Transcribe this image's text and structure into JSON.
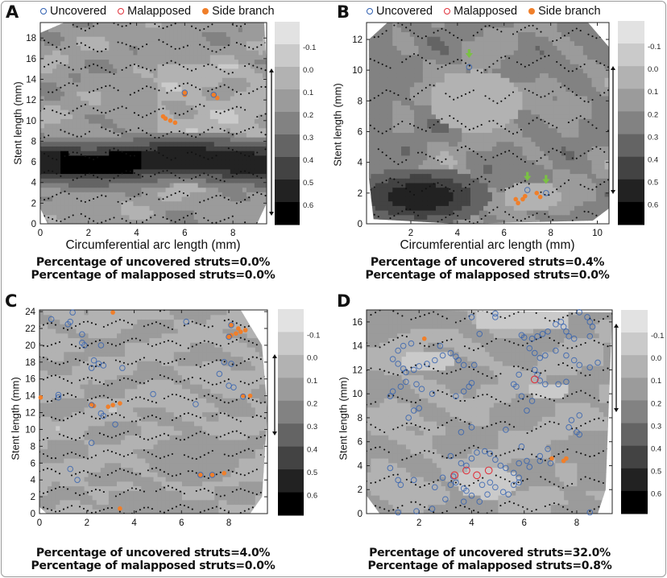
{
  "legend": {
    "uncovered": "Uncovered",
    "malapposed": "Malapposed",
    "side_branch": "Side branch"
  },
  "colors": {
    "uncovered": "#2f5fb0",
    "malapposed": "#e0303a",
    "side_branch": "#f07f2a",
    "arrow": "#7ac143",
    "strut": "#111111"
  },
  "axis_labels": {
    "x": "Circumferential arc length (mm)",
    "y": "Stent length (mm)"
  },
  "chart_data": [
    {
      "panel": "A",
      "type": "heatmap",
      "xlabel": "Circumferential arc length (mm)",
      "ylabel": "Stent length (mm)",
      "xlim": [
        0,
        9.4
      ],
      "ylim": [
        0,
        19.5
      ],
      "xticks": [
        "0",
        "2",
        "4",
        "6",
        "8"
      ],
      "yticks": [
        "0",
        "2",
        "4",
        "6",
        "8",
        "10",
        "12",
        "14",
        "16",
        "18"
      ],
      "colorbar_labels": [
        "-0.1",
        "0.0",
        "0.1",
        "0.2",
        "0.3",
        "0.4",
        "0.5",
        "0.6"
      ],
      "uncovered": [
        [
          6.0,
          12.7
        ],
        [
          7.2,
          12.5
        ]
      ],
      "malapposed": [],
      "side_branch": [
        [
          6.0,
          12.7
        ],
        [
          6.0,
          12.5
        ],
        [
          7.2,
          12.5
        ],
        [
          7.35,
          12.2
        ],
        [
          5.1,
          10.4
        ],
        [
          5.2,
          10.2
        ],
        [
          5.4,
          10.0
        ],
        [
          5.6,
          9.8
        ]
      ],
      "green_arrows": [],
      "percent_uncovered": "Percentage of uncovered struts=0.0%",
      "percent_malapposed": "Percentage of malapposed struts=0.0%"
    },
    {
      "panel": "B",
      "type": "heatmap",
      "xlabel": "Circumferential arc length (mm)",
      "ylabel": "Stent length (mm)",
      "xlim": [
        0.1,
        10.5
      ],
      "ylim": [
        0,
        13.1
      ],
      "xticks": [
        "2",
        "4",
        "6",
        "8",
        "10"
      ],
      "yticks": [
        "0",
        "2",
        "4",
        "6",
        "8",
        "10",
        "12"
      ],
      "colorbar_labels": [
        "-0.1",
        "0.0",
        "0.1",
        "0.2",
        "0.3",
        "0.4",
        "0.5",
        "0.6"
      ],
      "uncovered": [
        [
          4.5,
          10.2
        ],
        [
          7.0,
          2.2
        ],
        [
          7.8,
          2.0
        ]
      ],
      "malapposed": [],
      "side_branch": [
        [
          6.5,
          1.6
        ],
        [
          6.6,
          1.35
        ],
        [
          6.8,
          1.6
        ],
        [
          6.9,
          1.8
        ],
        [
          7.4,
          2.0
        ],
        [
          7.55,
          1.75
        ]
      ],
      "green_arrows": [
        [
          4.5,
          10.9
        ],
        [
          7.0,
          2.9
        ],
        [
          7.8,
          2.7
        ]
      ],
      "percent_uncovered": "Percentage of uncovered struts=0.4%",
      "percent_malapposed": "Percentage of malapposed struts=0.0%"
    },
    {
      "panel": "C",
      "type": "heatmap",
      "ylabel": "Stent length (mm)",
      "xlim": [
        0,
        9.63
      ],
      "ylim": [
        0,
        24.2
      ],
      "xticks": [
        "0",
        "2",
        "4",
        "6",
        "8"
      ],
      "yticks": [
        "0",
        "2",
        "4",
        "6",
        "8",
        "10",
        "12",
        "14",
        "16",
        "18",
        "20",
        "22",
        "24"
      ],
      "colorbar_labels": [
        "-0.1",
        "0.0",
        "0.1",
        "0.2",
        "0.3",
        "0.4",
        "0.5",
        "0.6"
      ],
      "uncovered": [
        [
          0.5,
          23.1
        ],
        [
          1.2,
          22.5
        ],
        [
          1.3,
          22.8
        ],
        [
          1.4,
          23.9
        ],
        [
          1.8,
          21.3
        ],
        [
          1.8,
          20.3
        ],
        [
          1.9,
          20.0
        ],
        [
          2.6,
          20.0
        ],
        [
          2.3,
          18.2
        ],
        [
          2.2,
          17.3
        ],
        [
          2.5,
          17.8
        ],
        [
          2.7,
          17.6
        ],
        [
          3.5,
          17.3
        ],
        [
          0.8,
          13.8
        ],
        [
          0.8,
          14.1
        ],
        [
          2.6,
          11.9
        ],
        [
          2.7,
          11.6
        ],
        [
          3.2,
          10.6
        ],
        [
          2.2,
          8.4
        ],
        [
          1.3,
          5.3
        ],
        [
          1.6,
          4.0
        ],
        [
          4.8,
          14.2
        ],
        [
          6.6,
          13.0
        ],
        [
          6.2,
          22.8
        ],
        [
          7.6,
          16.6
        ],
        [
          7.8,
          18.0
        ],
        [
          8.1,
          17.8
        ],
        [
          8.0,
          15.2
        ],
        [
          8.2,
          15.0
        ],
        [
          8.6,
          13.9
        ],
        [
          2.2,
          12.9
        ],
        [
          6.8,
          4.6
        ],
        [
          7.3,
          4.6
        ],
        [
          8.1,
          22.4
        ],
        [
          8.0,
          21.0
        ]
      ],
      "malapposed": [],
      "side_branch": [
        [
          8.1,
          22.4
        ],
        [
          8.4,
          22.0
        ],
        [
          8.5,
          21.6
        ],
        [
          8.0,
          21.0
        ],
        [
          8.1,
          21.2
        ],
        [
          8.3,
          21.4
        ],
        [
          8.7,
          21.8
        ],
        [
          8.6,
          14.0
        ],
        [
          8.9,
          14.0
        ],
        [
          2.2,
          13.0
        ],
        [
          2.3,
          12.8
        ],
        [
          2.9,
          12.7
        ],
        [
          3.1,
          12.9
        ],
        [
          3.4,
          13.1
        ],
        [
          6.8,
          4.6
        ],
        [
          7.3,
          4.6
        ],
        [
          7.8,
          4.8
        ],
        [
          3.4,
          0.6
        ],
        [
          0.05,
          13.8
        ],
        [
          3.1,
          23.9
        ]
      ],
      "green_arrows": [],
      "percent_uncovered": "Percentage of uncovered struts=4.0%",
      "percent_malapposed": "Percentage of malapposed struts=0.0%"
    },
    {
      "panel": "D",
      "type": "heatmap",
      "ylabel": "Stent length (mm)",
      "xlim": [
        0,
        9.35
      ],
      "ylim": [
        0,
        17.0
      ],
      "xticks": [
        "2",
        "4",
        "6",
        "8"
      ],
      "yticks": [
        "0",
        "2",
        "4",
        "6",
        "8",
        "10",
        "12",
        "14",
        "16"
      ],
      "colorbar_labels": [
        "-0.1",
        "0.0",
        "0.1",
        "0.2",
        "0.3",
        "0.4",
        "0.5",
        "0.6"
      ],
      "uncovered": [
        [
          1.2,
          13.6
        ],
        [
          1.4,
          14.0
        ],
        [
          1.7,
          14.2
        ],
        [
          1.0,
          12.9
        ],
        [
          1.2,
          12.5
        ],
        [
          1.4,
          12.1
        ],
        [
          1.5,
          11.8
        ],
        [
          1.8,
          12.0
        ],
        [
          2.0,
          12.3
        ],
        [
          2.3,
          12.5
        ],
        [
          2.6,
          12.8
        ],
        [
          2.9,
          13.2
        ],
        [
          3.2,
          13.4
        ],
        [
          3.4,
          13.1
        ],
        [
          3.5,
          12.8
        ],
        [
          3.7,
          12.4
        ],
        [
          4.1,
          12.4
        ],
        [
          2.8,
          14.0
        ],
        [
          1.0,
          10.2
        ],
        [
          0.9,
          9.8
        ],
        [
          1.3,
          10.6
        ],
        [
          1.5,
          11.0
        ],
        [
          1.9,
          10.8
        ],
        [
          2.1,
          10.4
        ],
        [
          2.5,
          10.0
        ],
        [
          3.4,
          9.8
        ],
        [
          3.7,
          10.2
        ],
        [
          3.9,
          10.6
        ],
        [
          4.0,
          10.9
        ],
        [
          1.8,
          8.6
        ],
        [
          1.6,
          8.0
        ],
        [
          2.0,
          8.8
        ],
        [
          4.0,
          16.4
        ],
        [
          4.9,
          16.7
        ],
        [
          4.9,
          16.4
        ],
        [
          4.3,
          15.0
        ],
        [
          5.9,
          14.9
        ],
        [
          6.0,
          14.7
        ],
        [
          6.3,
          14.6
        ],
        [
          6.5,
          14.8
        ],
        [
          6.7,
          15.0
        ],
        [
          6.9,
          15.2
        ],
        [
          7.2,
          15.8
        ],
        [
          7.4,
          16.0
        ],
        [
          7.5,
          15.6
        ],
        [
          7.6,
          15.2
        ],
        [
          7.7,
          14.8
        ],
        [
          7.9,
          14.6
        ],
        [
          6.2,
          13.8
        ],
        [
          6.4,
          13.4
        ],
        [
          6.6,
          13.0
        ],
        [
          6.8,
          13.2
        ],
        [
          7.2,
          13.6
        ],
        [
          7.6,
          13.2
        ],
        [
          7.9,
          12.8
        ],
        [
          8.1,
          12.4
        ],
        [
          8.5,
          12.2
        ],
        [
          8.8,
          12.6
        ],
        [
          6.4,
          12.0
        ],
        [
          6.5,
          11.6
        ],
        [
          6.6,
          11.1
        ],
        [
          6.8,
          10.8
        ],
        [
          7.3,
          10.8
        ],
        [
          7.6,
          11.0
        ],
        [
          5.8,
          11.6
        ],
        [
          5.6,
          10.8
        ],
        [
          5.7,
          10.6
        ],
        [
          5.9,
          9.8
        ],
        [
          6.1,
          8.6
        ],
        [
          6.3,
          9.4
        ],
        [
          8.1,
          16.8
        ],
        [
          8.4,
          16.4
        ],
        [
          8.5,
          16.0
        ],
        [
          8.6,
          15.6
        ],
        [
          8.5,
          14.8
        ],
        [
          7.8,
          7.8
        ],
        [
          8.1,
          8.2
        ],
        [
          7.7,
          7.2
        ],
        [
          8.0,
          6.8
        ],
        [
          8.1,
          6.6
        ],
        [
          5.9,
          5.6
        ],
        [
          3.2,
          4.8
        ],
        [
          3.6,
          4.2
        ],
        [
          3.8,
          4.0
        ],
        [
          4.0,
          4.6
        ],
        [
          4.2,
          5.1
        ],
        [
          4.5,
          5.2
        ],
        [
          4.7,
          5.0
        ],
        [
          4.9,
          4.5
        ],
        [
          5.1,
          4.0
        ],
        [
          5.3,
          3.8
        ],
        [
          5.6,
          3.4
        ],
        [
          5.8,
          3.0
        ],
        [
          3.3,
          3.1
        ],
        [
          3.4,
          2.6
        ],
        [
          3.2,
          2.4
        ],
        [
          3.7,
          2.1
        ],
        [
          3.8,
          1.9
        ],
        [
          4.0,
          1.5
        ],
        [
          4.3,
          1.0
        ],
        [
          4.6,
          1.6
        ],
        [
          4.9,
          2.2
        ],
        [
          5.2,
          1.8
        ],
        [
          5.4,
          1.6
        ],
        [
          5.6,
          2.4
        ],
        [
          5.8,
          2.6
        ],
        [
          3.0,
          1.2
        ],
        [
          3.7,
          1.0
        ],
        [
          4.4,
          2.4
        ],
        [
          4.7,
          2.6
        ],
        [
          2.9,
          3.0
        ],
        [
          2.6,
          2.2
        ],
        [
          1.2,
          2.8
        ],
        [
          1.3,
          2.4
        ],
        [
          1.8,
          2.8
        ],
        [
          5.8,
          4.2
        ],
        [
          6.1,
          4.4
        ],
        [
          6.6,
          4.4
        ],
        [
          7.0,
          4.2
        ],
        [
          6.9,
          5.4
        ],
        [
          2.5,
          0.4
        ],
        [
          1.9,
          0.2
        ],
        [
          1.2,
          0.1
        ],
        [
          6.2,
          3.9
        ],
        [
          8.5,
          0.1
        ],
        [
          0.9,
          3.8
        ],
        [
          4.0,
          7.2
        ],
        [
          3.6,
          6.8
        ],
        [
          5.3,
          7.0
        ],
        [
          6.6,
          4.8
        ]
      ],
      "malapposed": [
        [
          3.35,
          3.2
        ],
        [
          3.8,
          3.6
        ],
        [
          4.2,
          3.2
        ],
        [
          4.65,
          3.6
        ],
        [
          6.4,
          11.2
        ]
      ],
      "side_branch": [
        [
          2.2,
          14.6
        ],
        [
          7.05,
          4.6
        ],
        [
          7.5,
          4.4
        ],
        [
          7.6,
          4.6
        ]
      ],
      "green_arrows": [],
      "percent_uncovered": "Percentage of uncovered struts=32.0%",
      "percent_malapposed": "Percentage of malapposed struts=0.8%"
    }
  ]
}
